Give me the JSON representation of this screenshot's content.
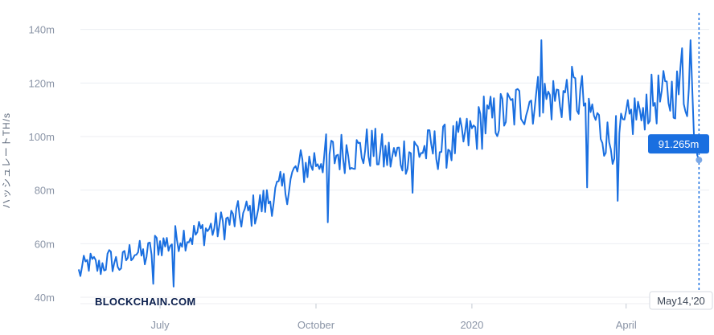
{
  "chart_data": {
    "type": "line",
    "ylabel": "ハッシュレートTH/s",
    "y_ticks": [
      {
        "value": 40,
        "label": "40m"
      },
      {
        "value": 60,
        "label": "60m"
      },
      {
        "value": 80,
        "label": "80m"
      },
      {
        "value": 100,
        "label": "100m"
      },
      {
        "value": 120,
        "label": "120m"
      },
      {
        "value": 140,
        "label": "140m"
      }
    ],
    "x_ticks": [
      {
        "date": "2019-07-01",
        "label": "July"
      },
      {
        "date": "2019-10-01",
        "label": "October"
      },
      {
        "date": "2020-01-01",
        "label": "2020"
      },
      {
        "date": "2020-04-01",
        "label": "April"
      }
    ],
    "xlim": [
      "2019-05-15",
      "2020-05-20"
    ],
    "ylim": [
      40,
      145
    ],
    "grid": "horizontal",
    "series": [
      {
        "color": "#1a6fe0",
        "anchors": [
          [
            "2019-05-14",
            49
          ],
          [
            "2019-05-20",
            53
          ],
          [
            "2019-05-26",
            51
          ],
          [
            "2019-06-01",
            54
          ],
          [
            "2019-06-08",
            52
          ],
          [
            "2019-06-15",
            58
          ],
          [
            "2019-06-22",
            55
          ],
          [
            "2019-06-29",
            60
          ],
          [
            "2019-07-06",
            60
          ],
          [
            "2019-07-13",
            63
          ],
          [
            "2019-07-20",
            63
          ],
          [
            "2019-07-27",
            65
          ],
          [
            "2019-08-03",
            66
          ],
          [
            "2019-08-10",
            68
          ],
          [
            "2019-08-17",
            70
          ],
          [
            "2019-08-24",
            72
          ],
          [
            "2019-08-31",
            75
          ],
          [
            "2019-09-07",
            78
          ],
          [
            "2019-09-14",
            82
          ],
          [
            "2019-09-21",
            88
          ],
          [
            "2019-09-28",
            90
          ],
          [
            "2019-10-05",
            93
          ],
          [
            "2019-10-12",
            93
          ],
          [
            "2019-10-19",
            95
          ],
          [
            "2019-10-26",
            94
          ],
          [
            "2019-11-02",
            96
          ],
          [
            "2019-11-09",
            93
          ],
          [
            "2019-11-16",
            92
          ],
          [
            "2019-11-23",
            94
          ],
          [
            "2019-11-30",
            95
          ],
          [
            "2019-12-07",
            95
          ],
          [
            "2019-12-14",
            96
          ],
          [
            "2019-12-21",
            97
          ],
          [
            "2019-12-28",
            99
          ],
          [
            "2020-01-04",
            103
          ],
          [
            "2020-01-11",
            106
          ],
          [
            "2020-01-18",
            108
          ],
          [
            "2020-01-25",
            110
          ],
          [
            "2020-02-01",
            113
          ],
          [
            "2020-02-08",
            114
          ],
          [
            "2020-02-15",
            114
          ],
          [
            "2020-02-22",
            115
          ],
          [
            "2020-03-01",
            116
          ],
          [
            "2020-03-08",
            113
          ],
          [
            "2020-03-15",
            105
          ],
          [
            "2020-03-22",
            98
          ],
          [
            "2020-03-29",
            100
          ],
          [
            "2020-04-05",
            108
          ],
          [
            "2020-04-12",
            112
          ],
          [
            "2020-04-19",
            114
          ],
          [
            "2020-04-26",
            115
          ],
          [
            "2020-05-03",
            118
          ],
          [
            "2020-05-10",
            115
          ],
          [
            "2020-05-14",
            91.265
          ]
        ],
        "peaks": [
          [
            "2019-06-27",
            45
          ],
          [
            "2019-07-09",
            44
          ],
          [
            "2019-10-08",
            68
          ],
          [
            "2019-11-27",
            79
          ],
          [
            "2020-01-08",
            115
          ],
          [
            "2020-02-11",
            136
          ],
          [
            "2020-03-09",
            81
          ],
          [
            "2020-03-27",
            76
          ],
          [
            "2020-04-10",
            106
          ],
          [
            "2020-05-09",
            136
          ],
          [
            "2020-05-04",
            133
          ]
        ]
      }
    ],
    "last_point": {
      "date": "2020-05-14",
      "value": 91.265,
      "label": "91.265m"
    }
  },
  "brand": {
    "name": "BLOCKCHAIN.COM"
  },
  "crosshair": {
    "date_label": "May14,'20"
  },
  "colors": {
    "line": "#1a6fe0",
    "grid": "#eceef2",
    "tooltip_bg": "#1a6fe0",
    "marker": "#7aa7e6"
  }
}
